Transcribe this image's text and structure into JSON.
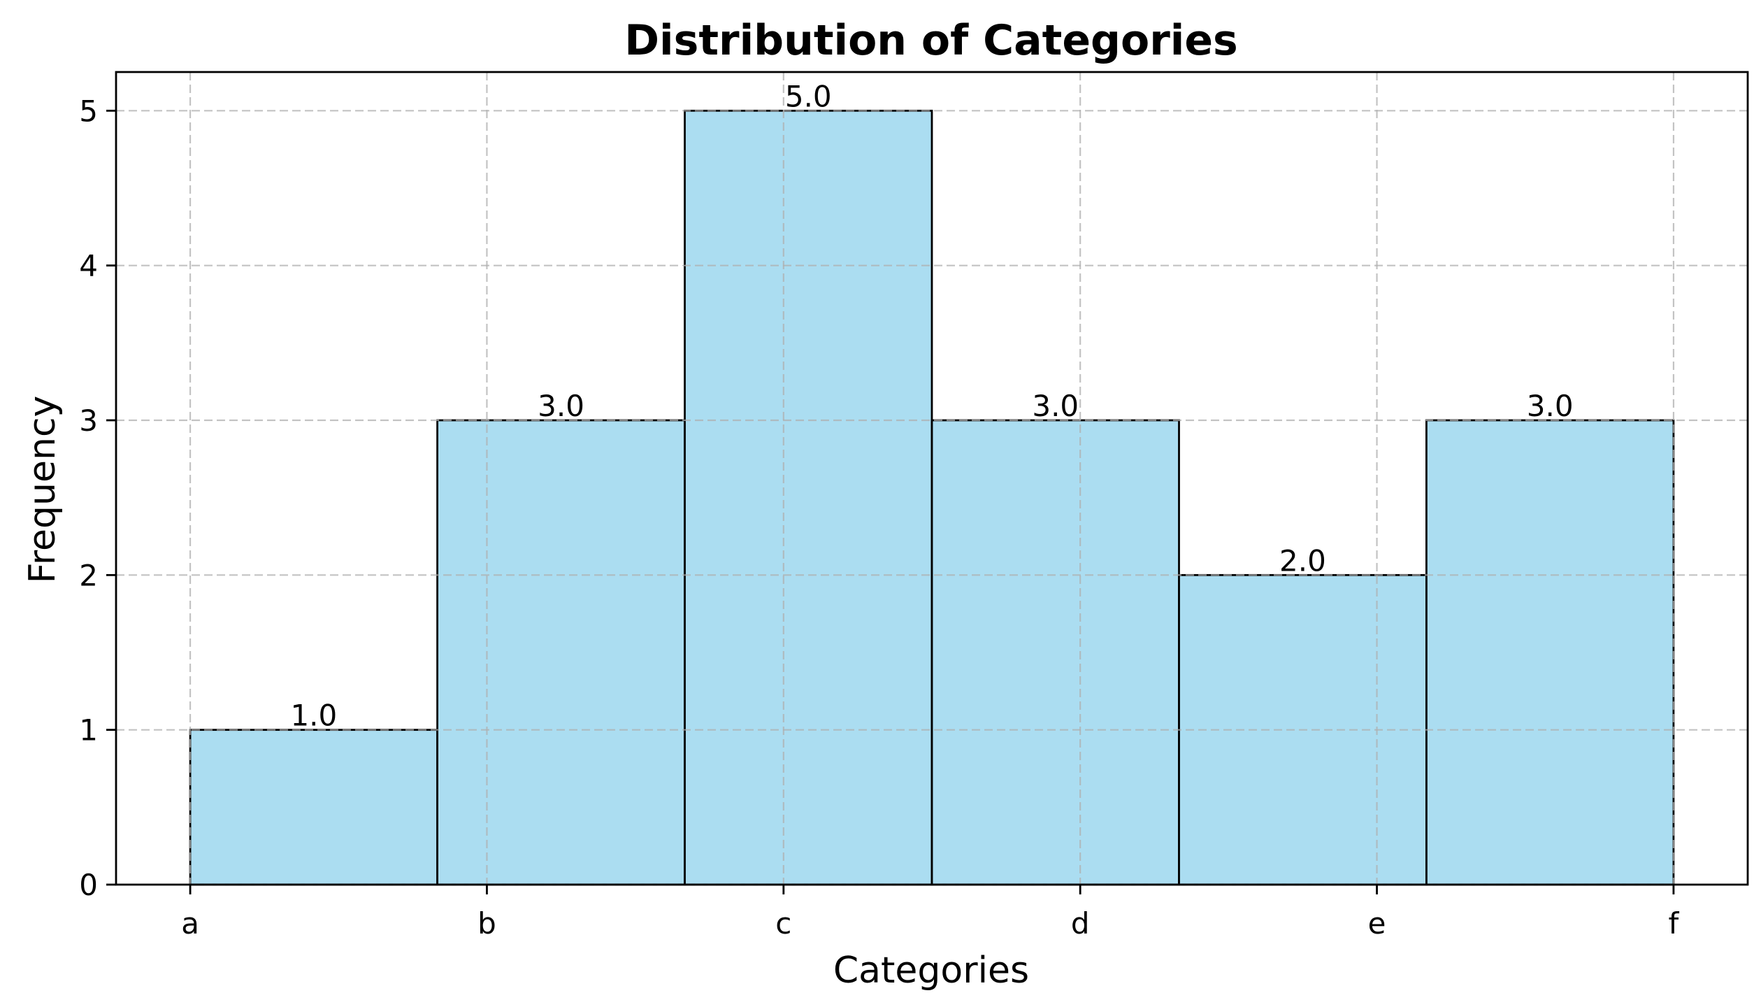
{
  "chart_data": {
    "type": "bar",
    "title": "Distribution of Categories",
    "xlabel": "Categories",
    "ylabel": "Frequency",
    "x_ticks": [
      "a",
      "b",
      "c",
      "d",
      "e",
      "f"
    ],
    "y_ticks": [
      "0",
      "1",
      "2",
      "3",
      "4",
      "5"
    ],
    "ylim": [
      0,
      5.25
    ],
    "xlim": [
      -0.25,
      5.25
    ],
    "bins": [
      {
        "start": 0.0,
        "end": 0.833,
        "value": 1,
        "label": "1.0"
      },
      {
        "start": 0.833,
        "end": 1.667,
        "value": 3,
        "label": "3.0"
      },
      {
        "start": 1.667,
        "end": 2.5,
        "value": 5,
        "label": "5.0"
      },
      {
        "start": 2.5,
        "end": 3.333,
        "value": 3,
        "label": "3.0"
      },
      {
        "start": 3.333,
        "end": 4.167,
        "value": 2,
        "label": "2.0"
      },
      {
        "start": 4.167,
        "end": 5.0,
        "value": 3,
        "label": "3.0"
      }
    ],
    "grid": true,
    "colors": {
      "bar_fill": "#87ceeb",
      "bar_edge": "#000000",
      "grid": "#b0b0b0"
    }
  }
}
